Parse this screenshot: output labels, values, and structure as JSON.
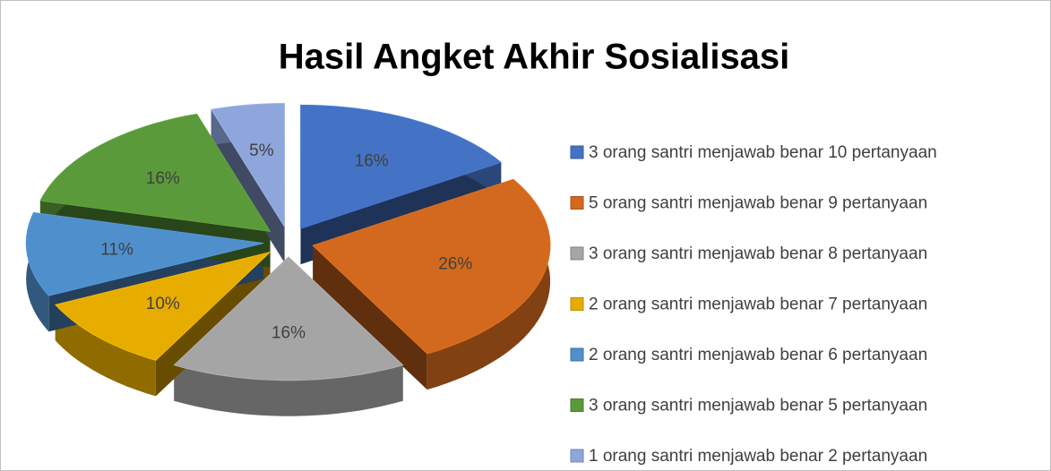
{
  "chart_data": {
    "type": "pie",
    "title": "Hasil Angket Akhir Sosialisasi",
    "categories": [
      "3 orang santri menjawab benar 10 pertanyaan",
      "5 orang santri menjawab benar 9 pertanyaan",
      "3 orang santri menjawab benar 8 pertanyaan",
      "2 orang santri menjawab benar 7 pertanyaan",
      "2 orang santri menjawab benar 6 pertanyaan",
      "3 orang santri menjawab benar 5 pertanyaan",
      "1 orang santri menjawab benar 2 pertanyaan"
    ],
    "values": [
      16,
      26,
      16,
      10,
      11,
      16,
      5
    ],
    "value_labels": [
      "16%",
      "26%",
      "16%",
      "10%",
      "11%",
      "16%",
      "5%"
    ],
    "colors": [
      "#4472c4",
      "#d2691e",
      "#a5a5a5",
      "#e6ac00",
      "#4f8fcc",
      "#5a9a3a",
      "#8fa6dc"
    ],
    "legend": "right"
  }
}
